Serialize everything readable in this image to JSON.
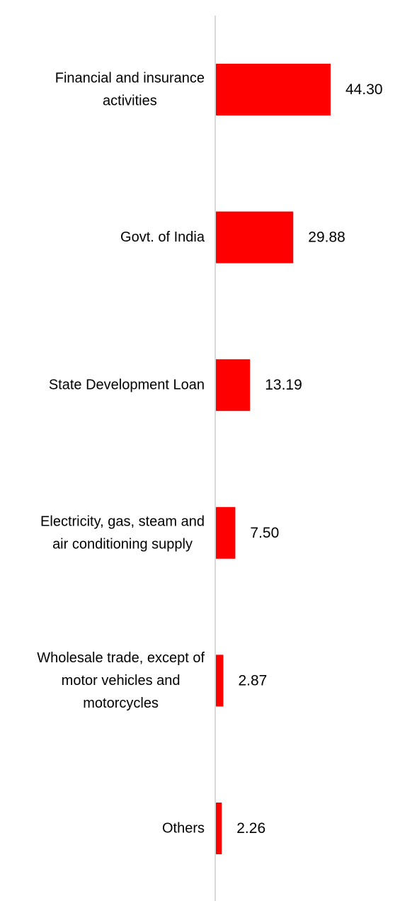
{
  "chart_data": {
    "type": "bar",
    "orientation": "horizontal",
    "categories": [
      "Financial and insurance activities",
      "Govt. of India",
      "State Development Loan",
      "Electricity, gas, steam and air conditioning supply",
      "Wholesale trade, except of motor vehicles and motorcycles",
      "Others"
    ],
    "category_lines": [
      [
        "Financial and insurance",
        "activities"
      ],
      [
        "Govt. of India"
      ],
      [
        "State Development Loan"
      ],
      [
        "Electricity, gas, steam and",
        "air conditioning supply"
      ],
      [
        "Wholesale trade, except of",
        "motor vehicles and",
        "motorcycles"
      ],
      [
        "Others"
      ]
    ],
    "values": [
      44.3,
      29.88,
      13.19,
      7.5,
      2.87,
      2.26
    ],
    "value_labels": [
      "44.30",
      "29.88",
      "13.19",
      "7.50",
      "2.87",
      "2.26"
    ],
    "xlim": [
      0,
      44.3
    ],
    "title": "",
    "xlabel": "",
    "ylabel": "",
    "grid": false,
    "legend": "none",
    "colors": {
      "bar": "#ff0000",
      "axis": "#d9d9d9",
      "text": "#000000"
    }
  }
}
